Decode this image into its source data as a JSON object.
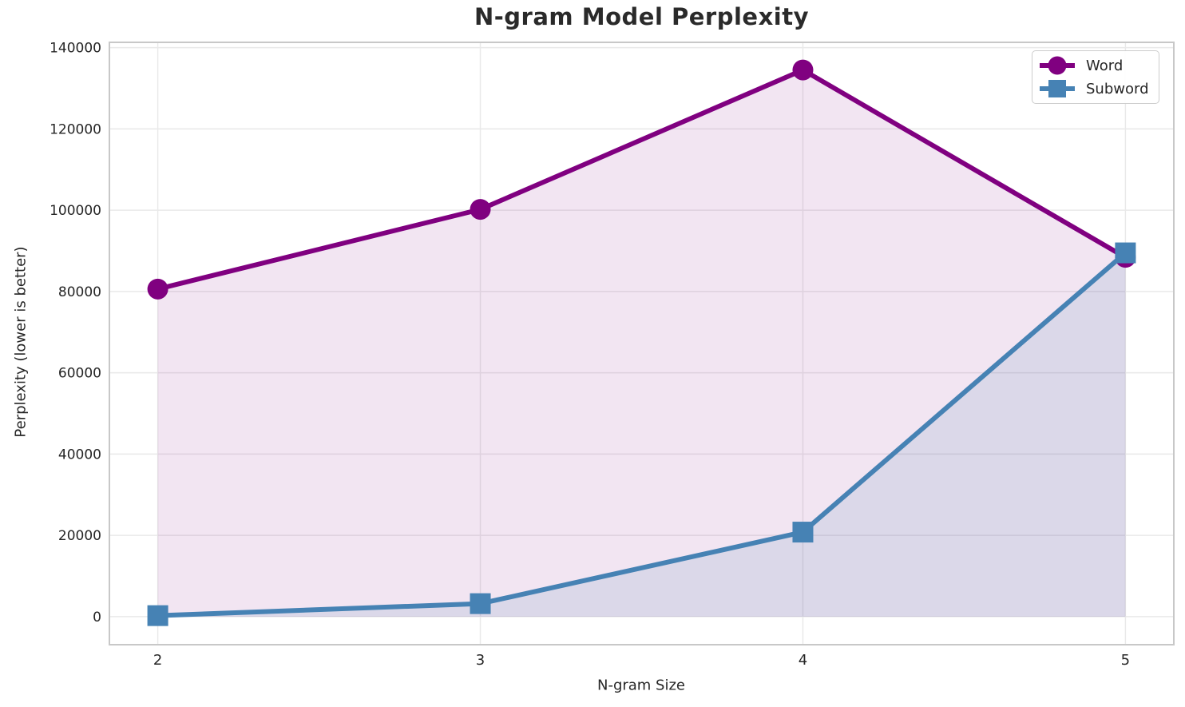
{
  "chart_data": {
    "type": "line",
    "title": "N-gram Model Perplexity",
    "xlabel": "N-gram Size",
    "ylabel": "Perplexity (lower is better)",
    "x": [
      2,
      3,
      4,
      5
    ],
    "x_ticks": [
      2,
      3,
      4,
      5
    ],
    "y_ticks": [
      0,
      20000,
      40000,
      60000,
      80000,
      100000,
      120000,
      140000
    ],
    "xlim": [
      1.85,
      5.15
    ],
    "ylim": [
      -6900,
      141300
    ],
    "grid": true,
    "legend_position": "top-right",
    "fill_baseline": 0,
    "series": [
      {
        "name": "Word",
        "marker": "circle",
        "color": "#800080",
        "fill": "rgba(128,0,128,0.10)",
        "values": [
          80600,
          100200,
          134500,
          88400
        ]
      },
      {
        "name": "Subword",
        "marker": "square",
        "color": "#4682B4",
        "fill": "rgba(70,130,180,0.13)",
        "values": [
          250,
          3200,
          20800,
          89500
        ]
      }
    ]
  },
  "style_colors": {
    "text": "#262626",
    "grid": "#e9e9e9",
    "spine": "#c8c8c8",
    "background": "#ffffff"
  }
}
